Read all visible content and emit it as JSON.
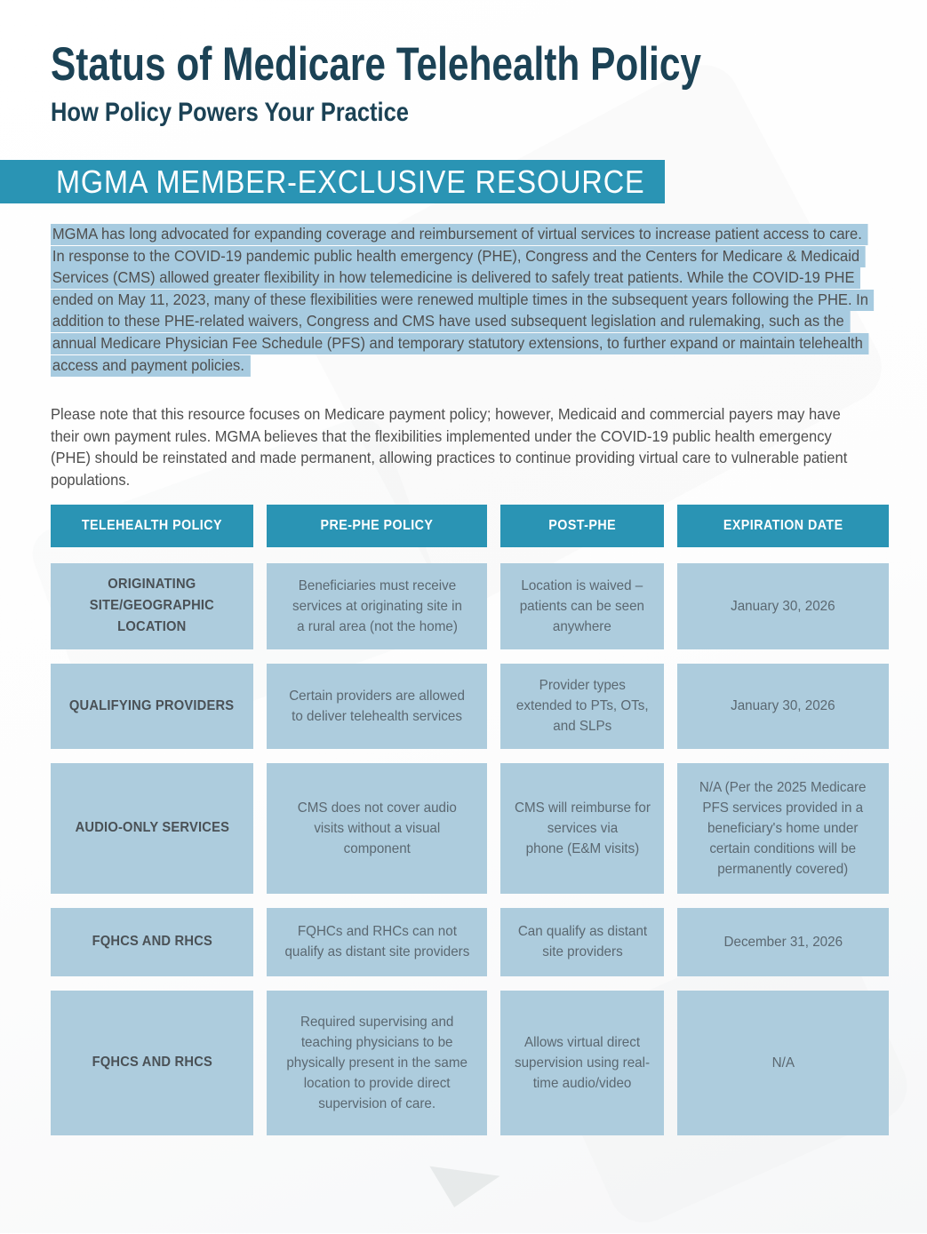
{
  "theme": {
    "teal": "#2a94b4",
    "cell_blue": "#adccdd",
    "highlight_blue": "#a7cbe0",
    "heading_navy": "#1b4255",
    "body_text": "#4e4e4e",
    "cell_text": "#5b6871"
  },
  "header": {
    "title": "Status of Medicare Telehealth Policy",
    "subtitle": "How Policy Powers Your Practice",
    "banner": "MGMA MEMBER-EXCLUSIVE RESOURCE"
  },
  "intro_highlighted_lines": [
    "MGMA has long advocated for expanding coverage and reimbursement of virtual services to increase patient access to care.",
    "In response to the COVID-19 pandemic public health emergency (PHE), Congress and the Centers for Medicare & Medicaid",
    "Services (CMS) allowed greater flexibility in how telemedicine is delivered to safely treat patients. While the COVID-19 PHE",
    "ended on May 11, 2023, many of these flexibilities were renewed multiple times in the subsequent years following the PHE. In",
    "addition to these PHE-related waivers, Congress and CMS have used subsequent legislation and rulemaking, such as the",
    "annual Medicare Physician Fee Schedule (PFS) and temporary statutory extensions, to further expand or maintain telehealth",
    "access and payment policies."
  ],
  "note_lines": [
    "Please note that this resource focuses on Medicare payment policy; however, Medicaid and commercial payers may have",
    "their own payment rules. MGMA believes that the flexibilities implemented under the COVID-19 public health emergency",
    "(PHE) should be reinstated and made permanent, allowing practices to continue providing virtual care to vulnerable patient",
    "populations."
  ],
  "table": {
    "headers": [
      "TELEHEALTH POLICY",
      "PRE-PHE POLICY",
      "POST-PHE",
      "EXPIRATION DATE"
    ],
    "rows": [
      {
        "policy": "ORIGINATING\nSITE/GEOGRAPHIC\nLOCATION",
        "pre_phe": "Beneficiaries must receive\nservices at originating site in\na rural area (not the home)",
        "post_phe": "Location is waived –\npatients can be seen\nanywhere",
        "expiration": "January 30, 2026"
      },
      {
        "policy": "QUALIFYING PROVIDERS",
        "pre_phe": "Certain providers are allowed\nto deliver telehealth services",
        "post_phe": "Provider types\nextended to PTs, OTs,\nand SLPs",
        "expiration": "January 30, 2026"
      },
      {
        "policy": "AUDIO-ONLY SERVICES",
        "pre_phe": "CMS does not cover audio\nvisits without a visual\ncomponent",
        "post_phe": "CMS will reimburse for\nservices via\nphone (E&M visits)",
        "expiration": "N/A (Per the 2025 Medicare\nPFS services provided in a\nbeneficiary's home under\ncertain conditions will be\npermanently covered)"
      },
      {
        "policy": "FQHCS AND RHCS",
        "pre_phe": "FQHCs and RHCs can not\nqualify as distant site providers",
        "post_phe": "Can qualify as distant\nsite providers",
        "expiration": "December 31, 2026"
      },
      {
        "policy": "FQHCS AND RHCS",
        "pre_phe": "Required supervising and\nteaching physicians to be\nphysically present in the same\nlocation to provide direct\nsupervision of care.",
        "post_phe": "Allows virtual direct\nsupervision using real-\ntime audio/video",
        "expiration": "N/A"
      }
    ]
  }
}
